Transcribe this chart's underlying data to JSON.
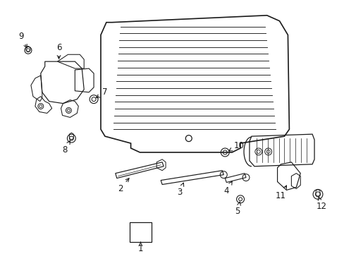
{
  "bg_color": "#ffffff",
  "line_color": "#1a1a1a",
  "figsize": [
    4.89,
    3.6
  ],
  "dpi": 100,
  "labels": {
    "1": [
      200,
      348,
      200,
      330
    ],
    "2": [
      178,
      278,
      163,
      262
    ],
    "3": [
      258,
      292,
      248,
      278
    ],
    "4": [
      318,
      295,
      308,
      280
    ],
    "5": [
      340,
      312,
      336,
      298
    ],
    "6": [
      82,
      68,
      82,
      58
    ],
    "7": [
      138,
      148,
      148,
      135
    ],
    "8": [
      100,
      200,
      90,
      215
    ],
    "9": [
      38,
      68,
      28,
      55
    ],
    "10": [
      330,
      215,
      344,
      205
    ],
    "11": [
      392,
      290,
      382,
      305
    ],
    "12": [
      452,
      300,
      458,
      315
    ]
  }
}
